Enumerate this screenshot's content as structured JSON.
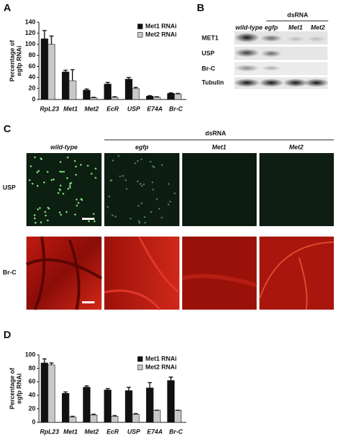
{
  "chart_data": [
    {
      "type": "bar",
      "panel_label": "A",
      "ylabel": [
        "Percentage of",
        "egfp RNAi"
      ],
      "categories": [
        "RpL23",
        "Met1",
        "Met2",
        "EcR",
        "USP",
        "E74A",
        "Br-C"
      ],
      "series": [
        {
          "name": "Met1 RNAi",
          "color": "#111111",
          "values": [
            110,
            50,
            17,
            28,
            37,
            6,
            11
          ],
          "errors": [
            15,
            3,
            2,
            3,
            3,
            1,
            1
          ]
        },
        {
          "name": "Met2 RNAi",
          "color": "#c8c8c8",
          "values": [
            100,
            34,
            3,
            4,
            20,
            4,
            10
          ],
          "errors": [
            15,
            20,
            1,
            1,
            2,
            1,
            1
          ]
        }
      ],
      "ylim": [
        0,
        140
      ],
      "yticks": [
        0,
        20,
        40,
        60,
        80,
        100,
        120,
        140
      ],
      "legend": "top-right"
    },
    {
      "type": "bar",
      "panel_label": "D",
      "ylabel": [
        "Percentage of",
        "egfp RNAi"
      ],
      "categories": [
        "RpL23",
        "Met1",
        "Met2",
        "EcR",
        "USP",
        "E74A",
        "Br-C"
      ],
      "series": [
        {
          "name": "Met1 RNAi",
          "color": "#111111",
          "values": [
            88,
            43,
            52,
            48,
            47,
            51,
            62
          ],
          "errors": [
            6,
            2,
            2,
            2,
            5,
            8,
            5
          ]
        },
        {
          "name": "Met2 RNAi",
          "color": "#c8c8c8",
          "values": [
            85,
            8,
            11,
            9,
            12,
            18,
            18
          ],
          "errors": [
            3,
            1,
            1,
            1,
            1,
            0,
            0
          ]
        }
      ],
      "ylim": [
        0,
        100
      ],
      "yticks": [
        0,
        20,
        40,
        60,
        80,
        100
      ],
      "legend": "top-right"
    }
  ],
  "panel_b": {
    "label": "B",
    "group": "dsRNA",
    "lanes": [
      "wild-type",
      "egfp",
      "Met1",
      "Met2"
    ],
    "rows": [
      "MET1",
      "USP",
      "Br-C",
      "Tubulin"
    ]
  },
  "panel_c": {
    "label": "C",
    "group": "dsRNA",
    "columns": [
      "wild-type",
      "egfp",
      "Met1",
      "Met2"
    ],
    "rows": [
      "USP",
      "Br-C"
    ]
  }
}
